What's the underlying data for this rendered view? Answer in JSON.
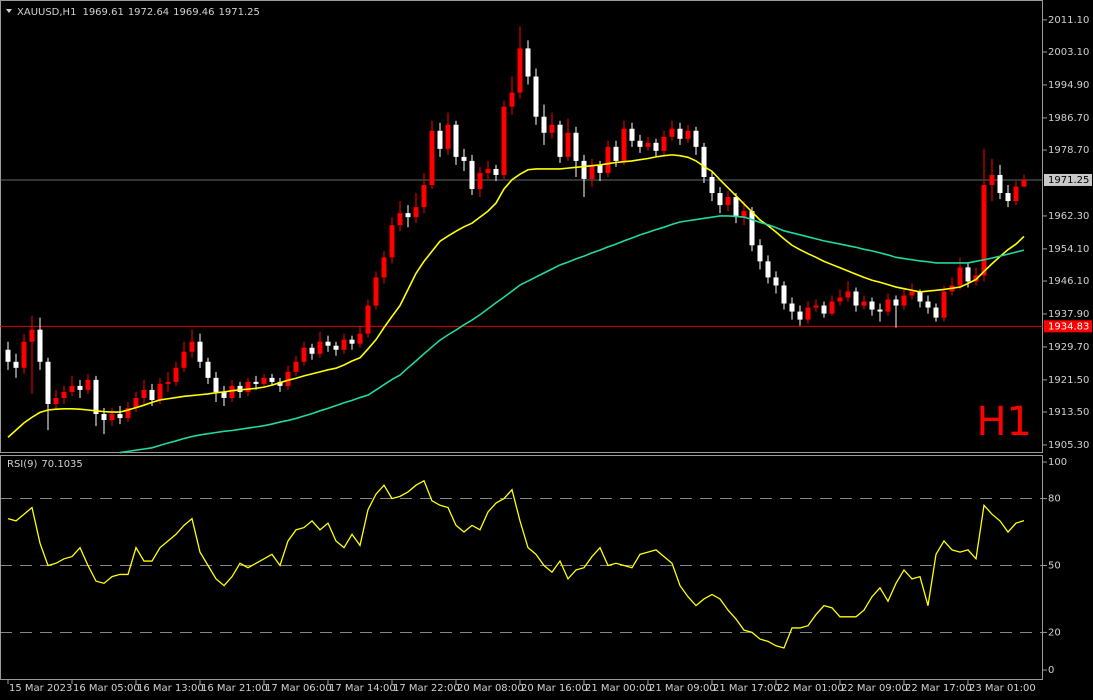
{
  "chart_data": [
    {
      "type": "candlestick",
      "symbol": "XAUUSD,H1",
      "categories": [
        "15 Mar 2023",
        null,
        null,
        null,
        null,
        null,
        null,
        null,
        "16 Mar 05:00",
        null,
        null,
        null,
        null,
        null,
        null,
        null,
        "16 Mar 13:00",
        null,
        null,
        null,
        null,
        null,
        null,
        null,
        "16 Mar 21:00",
        null,
        null,
        null,
        null,
        null,
        null,
        null,
        "17 Mar 06:00",
        null,
        null,
        null,
        null,
        null,
        null,
        null,
        "17 Mar 14:00",
        null,
        null,
        null,
        null,
        null,
        null,
        null,
        "17 Mar 22:00",
        null,
        null,
        null,
        null,
        null,
        null,
        null,
        "20 Mar 08:00",
        null,
        null,
        null,
        null,
        null,
        null,
        null,
        "20 Mar 16:00",
        null,
        null,
        null,
        null,
        null,
        null,
        null,
        "21 Mar 00:00",
        null,
        null,
        null,
        null,
        null,
        null,
        null,
        "21 Mar 09:00",
        null,
        null,
        null,
        null,
        null,
        null,
        null,
        "21 Mar 17:00",
        null,
        null,
        null,
        null,
        null,
        null,
        null,
        "22 Mar 01:00",
        null,
        null,
        null,
        null,
        null,
        null,
        null,
        "22 Mar 09:00",
        null,
        null,
        null,
        null,
        null,
        null,
        null,
        "22 Mar 17:00",
        null,
        null,
        null,
        null,
        null,
        null,
        null,
        "23 Mar 01:00",
        null,
        null,
        null,
        null,
        null,
        null,
        null
      ],
      "open": [
        1929,
        1926,
        1924.5,
        1931,
        1934,
        1926,
        1915.5,
        1917,
        1918.5,
        1920,
        1919,
        1921.5,
        1913,
        1911.5,
        1913,
        1912,
        1914.5,
        1917,
        1919,
        1916.5,
        1920.5,
        1921,
        1924.5,
        1928.5,
        1931,
        1926,
        1922,
        1918.5,
        1917,
        1920,
        1918.5,
        1921,
        1920.5,
        1922,
        1921,
        1920,
        1923.5,
        1926,
        1929.5,
        1928,
        1931,
        1930,
        1929,
        1931.5,
        1930.5,
        1933,
        1940,
        1947,
        1952,
        1960,
        1963,
        1962,
        1964.5,
        1970,
        1983.5,
        1979,
        1985,
        1977,
        1976,
        1969,
        1973,
        1974,
        1972.5,
        1989.5,
        1993,
        2004,
        1997,
        1987,
        1983,
        1985,
        1977,
        1983,
        1976,
        1971.5,
        1975,
        1973,
        1979.5,
        1976,
        1984,
        1981,
        1979.5,
        1980.5,
        1978.5,
        1982,
        1984,
        1981.5,
        1983.5,
        1979.5,
        1972,
        1968,
        1965,
        1967,
        1962,
        1963.5,
        1955,
        1951,
        1947,
        1945,
        1940.5,
        1938.5,
        1936.5,
        1939.5,
        1940,
        1938,
        1941,
        1942,
        1943.5,
        1940,
        1941,
        1939,
        1938.5,
        1941.5,
        1940,
        1942.5,
        1943.5,
        1941,
        1939.5,
        1937,
        1943.5,
        1945,
        1949.5,
        1946,
        1947.5,
        1970,
        1972.5,
        1968,
        1966,
        1969.61
      ],
      "high": [
        1931,
        1928,
        1933,
        1937.5,
        1937,
        1927,
        1919,
        1920,
        1922.5,
        1921.5,
        1923,
        1922.5,
        1914.5,
        1914.5,
        1915,
        1916,
        1918.5,
        1921.5,
        1920.5,
        1922,
        1923.5,
        1926,
        1931,
        1934,
        1933,
        1927,
        1923.5,
        1920,
        1921.5,
        1921,
        1922,
        1922.5,
        1923,
        1923,
        1922,
        1925,
        1927.5,
        1931,
        1930.5,
        1933.5,
        1932.5,
        1931,
        1933,
        1932.5,
        1935,
        1941.5,
        1948.5,
        1953.5,
        1962,
        1966,
        1965,
        1968,
        1973,
        1986,
        1985.5,
        1988,
        1986,
        1979,
        1977.5,
        1974.5,
        1976,
        1975,
        1991,
        1997,
        2009.5,
        2006,
        1999,
        1990,
        1988,
        1986,
        1986.5,
        1984.5,
        1977.5,
        1976.5,
        1976,
        1981,
        1981,
        1986,
        1985.5,
        1982.5,
        1982,
        1981.5,
        1983.5,
        1986,
        1985.5,
        1985,
        1984.5,
        1980.5,
        1973.5,
        1969.5,
        1968.5,
        1968,
        1966,
        1964.5,
        1956.5,
        1952.5,
        1948.5,
        1946,
        1942,
        1940,
        1941,
        1941.5,
        1941,
        1942.5,
        1944,
        1946,
        1944.5,
        1942.5,
        1942,
        1940.5,
        1943,
        1942.5,
        1944.5,
        1945.5,
        1944,
        1942.5,
        1940.5,
        1945,
        1947,
        1952,
        1950.5,
        1949.5,
        1979,
        1976.5,
        1975,
        1970,
        1971,
        1972.64
      ],
      "low": [
        1924,
        1922,
        1923,
        1918,
        1924,
        1909,
        1914,
        1915.5,
        1917.5,
        1917,
        1918,
        1910,
        1908,
        1910,
        1910.5,
        1911,
        1913.5,
        1915.5,
        1915,
        1915.5,
        1918.5,
        1920,
        1923.5,
        1927,
        1924.5,
        1920.5,
        1916,
        1915,
        1916,
        1917,
        1917.5,
        1919,
        1919.5,
        1920,
        1918.5,
        1919,
        1922.5,
        1925,
        1926.5,
        1927,
        1928.5,
        1927.5,
        1928,
        1929,
        1929.5,
        1932,
        1939,
        1945.5,
        1950.5,
        1958.5,
        1959.5,
        1960.5,
        1963,
        1969,
        1977,
        1977.5,
        1975,
        1973.5,
        1967.5,
        1967,
        1971.5,
        1971,
        1971.5,
        1987.5,
        1991.5,
        1995,
        1985,
        1980,
        1981.5,
        1975.5,
        1976,
        1972,
        1967,
        1969.5,
        1971,
        1972,
        1974.5,
        1975,
        1979.5,
        1978,
        1978.5,
        1977,
        1977.5,
        1981,
        1980,
        1980.5,
        1977.5,
        1970.5,
        1966,
        1963,
        1963.5,
        1960.5,
        1960,
        1953.5,
        1949,
        1945.5,
        1943,
        1939,
        1936.5,
        1935,
        1935.5,
        1938.5,
        1937,
        1937.5,
        1940,
        1941,
        1938.5,
        1939,
        1937.5,
        1936,
        1937.5,
        1934.5,
        1939,
        1941.5,
        1939.5,
        1938,
        1936,
        1936,
        1942.5,
        1944,
        1944.5,
        1945,
        1946,
        1966,
        1966.5,
        1964.5,
        1965,
        1969.46
      ],
      "close": [
        1926,
        1924.5,
        1931,
        1934,
        1926,
        1915.5,
        1917,
        1918.5,
        1920,
        1919,
        1921.5,
        1913,
        1911.5,
        1913,
        1912,
        1914.5,
        1917,
        1919,
        1916.5,
        1920.5,
        1921,
        1924.5,
        1928.5,
        1931,
        1926,
        1922,
        1918.5,
        1917,
        1920,
        1918.5,
        1921,
        1920.5,
        1922,
        1921,
        1920,
        1923.5,
        1926,
        1929.5,
        1928,
        1931,
        1930,
        1929,
        1931.5,
        1930.5,
        1933,
        1940,
        1947,
        1952,
        1960,
        1963,
        1962,
        1964.5,
        1970,
        1983.5,
        1979,
        1985,
        1977,
        1976,
        1969,
        1973,
        1974,
        1972.5,
        1989.5,
        1993,
        2004,
        1997,
        1987,
        1983,
        1985,
        1977,
        1983,
        1976,
        1971.5,
        1975,
        1973,
        1979.5,
        1976,
        1984,
        1981,
        1979.5,
        1980.5,
        1978.5,
        1982,
        1984,
        1981.5,
        1983.5,
        1979.5,
        1972,
        1968,
        1965,
        1967,
        1962,
        1963.5,
        1955,
        1951,
        1947,
        1945,
        1940.5,
        1938.5,
        1936.5,
        1939.5,
        1940,
        1938,
        1941,
        1942,
        1943.5,
        1940,
        1941,
        1939,
        1938.5,
        1941.5,
        1940,
        1942.5,
        1943.5,
        1941,
        1939.5,
        1937,
        1943.5,
        1945,
        1949.5,
        1946,
        1947.5,
        1970,
        1972.5,
        1968,
        1966,
        1969.61,
        1971.25
      ],
      "up_color": "#ff0000",
      "down_color": "#ffffff",
      "series": [
        {
          "color": "#ffff00",
          "values": [
            1907.2,
            1909,
            1910.8,
            1912.2,
            1913.4,
            1914,
            1914.2,
            1914.3,
            1914.3,
            1914.2,
            1914,
            1913.8,
            1913.6,
            1913.5,
            1913.5,
            1914,
            1914.6,
            1915.2,
            1915.9,
            1916.5,
            1916.8,
            1917.1,
            1917.4,
            1917.6,
            1917.8,
            1918,
            1918.3,
            1918.5,
            1918.8,
            1919,
            1919.2,
            1919.4,
            1919.7,
            1920.2,
            1920.8,
            1921.4,
            1921.9,
            1922.5,
            1923,
            1923.5,
            1924,
            1924.4,
            1925.2,
            1926.2,
            1927,
            1929.2,
            1931.5,
            1934.5,
            1937.3,
            1940,
            1944,
            1948,
            1951,
            1953.5,
            1956,
            1957.3,
            1958.5,
            1959.6,
            1960.5,
            1962,
            1963.5,
            1965.5,
            1969,
            1971.3,
            1972.7,
            1973.8,
            1974,
            1974,
            1974,
            1974,
            1974.2,
            1974.4,
            1974.6,
            1974.8,
            1975,
            1975.3,
            1975.6,
            1975.8,
            1976,
            1976.3,
            1976.6,
            1977,
            1977.3,
            1977.5,
            1977.3,
            1976.9,
            1976,
            1974.6,
            1973.4,
            1971.3,
            1969.3,
            1967.3,
            1965.3,
            1963.3,
            1961.3,
            1959.9,
            1958.3,
            1956.6,
            1955,
            1953.9,
            1952.9,
            1952,
            1951,
            1950.2,
            1949.4,
            1948.6,
            1947.8,
            1947,
            1946.3,
            1945.8,
            1945.2,
            1944.6,
            1944.2,
            1943.8,
            1943.4,
            1943.6,
            1943.8,
            1944,
            1944.3,
            1944.6,
            1945.5,
            1946.5,
            1948.5,
            1950.4,
            1952.2,
            1953.9,
            1955.3,
            1957.2
          ]
        },
        {
          "color": "#20d8a0",
          "values": [
            null,
            null,
            null,
            null,
            null,
            null,
            null,
            null,
            null,
            null,
            null,
            null,
            null,
            null,
            1903.4,
            1903.7,
            1904,
            1904.3,
            1904.6,
            1905.2,
            1905.8,
            1906.3,
            1906.9,
            1907.4,
            1907.8,
            1908.1,
            1908.4,
            1908.7,
            1908.9,
            1909.2,
            1909.5,
            1909.8,
            1910.1,
            1910.5,
            1911,
            1911.4,
            1911.9,
            1912.5,
            1913.1,
            1913.8,
            1914.4,
            1915.1,
            1915.8,
            1916.4,
            1917.1,
            1917.7,
            1919,
            1920.3,
            1921.6,
            1922.7,
            1924.5,
            1926.2,
            1928,
            1929.7,
            1931.4,
            1932.7,
            1933.9,
            1935.2,
            1936.4,
            1937.7,
            1939.2,
            1940.7,
            1942.1,
            1943.6,
            1945.1,
            1946.1,
            1947.1,
            1948.1,
            1949.1,
            1950.1,
            1950.8,
            1951.6,
            1952.3,
            1953.1,
            1953.8,
            1954.6,
            1955.3,
            1956.1,
            1956.8,
            1957.6,
            1958.2,
            1958.9,
            1959.5,
            1960.2,
            1960.8,
            1961.1,
            1961.4,
            1961.7,
            1962,
            1962.3,
            1962.3,
            1962.2,
            1962,
            1961.4,
            1960.7,
            1960.1,
            1959.4,
            1958.6,
            1958.1,
            1957.6,
            1957.1,
            1956.6,
            1956.1,
            1955.7,
            1955.3,
            1954.9,
            1954.5,
            1954,
            1953.6,
            1953.1,
            1952.6,
            1952,
            1951.7,
            1951.4,
            1951.1,
            1950.9,
            1950.6,
            1950.6,
            1950.6,
            1950.6,
            1950.6,
            1951,
            1951.4,
            1951.8,
            1952.3,
            1952.8,
            1953.3,
            1953.8
          ]
        }
      ],
      "ylim": [
        1903.3,
        2014.8
      ],
      "yticks": [
        {
          "value": 1905.3,
          "label": "1905.30"
        },
        {
          "value": 1913.5,
          "label": "1913.50"
        },
        {
          "value": 1921.5,
          "label": "1921.50"
        },
        {
          "value": 1929.7,
          "label": "1929.70"
        },
        {
          "value": 1937.9,
          "label": "1937.90"
        },
        {
          "value": 1946.1,
          "label": "1946.10"
        },
        {
          "value": 1954.1,
          "label": "1954.10"
        },
        {
          "value": 1962.3,
          "label": "1962.30"
        },
        {
          "value": 1978.7,
          "label": "1978.70"
        },
        {
          "value": 1986.7,
          "label": "1986.70"
        },
        {
          "value": 1994.9,
          "label": "1994.90"
        },
        {
          "value": 2003.1,
          "label": "2003.10"
        },
        {
          "value": 2011.1,
          "label": "2011.10"
        }
      ],
      "level": {
        "value": 1934.83,
        "color": "#ff0000"
      },
      "watermark": "H1",
      "watermark_color": "#ff0000"
    },
    {
      "type": "line",
      "title": "RSI(9)",
      "color": "#ffff00",
      "values": [
        71,
        70,
        73,
        76,
        60,
        50,
        51,
        53,
        54,
        58,
        50,
        43,
        42,
        45,
        46,
        46,
        58,
        52,
        52,
        58,
        61,
        64,
        68,
        71,
        56,
        50,
        44,
        41,
        45,
        51,
        49,
        51,
        53,
        55,
        50,
        61,
        66,
        67,
        70,
        66,
        69,
        61,
        58,
        64,
        59,
        75,
        82,
        86,
        80,
        81,
        83,
        86,
        88,
        79,
        77,
        76,
        68,
        65,
        68,
        66,
        74,
        78,
        80,
        84,
        70,
        58,
        55,
        50,
        47,
        52,
        44,
        48,
        49,
        54,
        58,
        50,
        51,
        50,
        49,
        55,
        56,
        57,
        54,
        51,
        41,
        36,
        32,
        35,
        37,
        35,
        30,
        26,
        21,
        20,
        17,
        16,
        14,
        13,
        22,
        22,
        23,
        28,
        32,
        31,
        27,
        27,
        27,
        30,
        36,
        40,
        34,
        42,
        48,
        44,
        45,
        32,
        55,
        61,
        57,
        56,
        57,
        53,
        77,
        73,
        70,
        65,
        69,
        70.1035
      ],
      "ylim": [
        0,
        100
      ],
      "yticks": [
        0,
        20,
        50,
        80,
        100
      ]
    }
  ]
}
